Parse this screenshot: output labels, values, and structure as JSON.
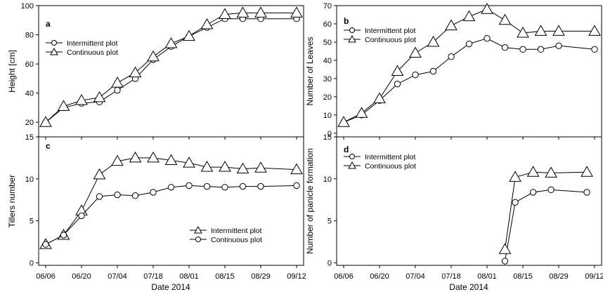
{
  "figure": {
    "x_axis_title": "Date 2014"
  },
  "chart_data": [
    {
      "id": "a",
      "type": "line",
      "panel_label": "a",
      "ylabel": "Height [cm]",
      "xlabel": "Date 2014",
      "ylim": [
        10,
        100
      ],
      "yticks": [
        20,
        40,
        60,
        80,
        100
      ],
      "xticks": [
        "06/06",
        "06/20",
        "07/04",
        "07/18",
        "08/01",
        "08/15",
        "08/29",
        "09/12"
      ],
      "x_unit": "days since 06/06",
      "legend_position": "top-left",
      "series": [
        {
          "name": "Intermittent plot",
          "marker": "circle",
          "x": [
            0,
            7,
            14,
            21,
            28,
            35,
            42,
            49,
            56,
            63,
            70,
            77,
            84,
            98
          ],
          "y": [
            20,
            30,
            33,
            34,
            42,
            50,
            63,
            72,
            79,
            85,
            91,
            91,
            91,
            91
          ]
        },
        {
          "name": "Continuous plot",
          "marker": "triangle",
          "x": [
            0,
            7,
            14,
            21,
            28,
            35,
            42,
            49,
            56,
            63,
            70,
            77,
            84,
            98
          ],
          "y": [
            20,
            31,
            35,
            37,
            47,
            54,
            65,
            74,
            79,
            87,
            94,
            95,
            95,
            95
          ]
        }
      ]
    },
    {
      "id": "b",
      "type": "line",
      "panel_label": "b",
      "ylabel": "Number of Leaves",
      "xlabel": "Date 2014",
      "ylim": [
        -2,
        70
      ],
      "yticks": [
        0,
        10,
        20,
        30,
        40,
        50,
        60,
        70
      ],
      "xticks": [
        "06/06",
        "06/20",
        "07/04",
        "07/18",
        "08/01",
        "08/15",
        "08/29",
        "09/12"
      ],
      "x_unit": "days since 06/06",
      "legend_position": "top-left",
      "series": [
        {
          "name": "Intermittent plot",
          "marker": "circle",
          "x": [
            0,
            7,
            14,
            21,
            28,
            35,
            42,
            49,
            56,
            63,
            70,
            77,
            84,
            98
          ],
          "y": [
            6,
            10,
            18,
            27,
            32,
            34,
            42,
            49,
            52,
            47,
            46,
            46,
            48,
            46
          ]
        },
        {
          "name": "Continuous plot",
          "marker": "triangle",
          "x": [
            0,
            7,
            14,
            21,
            28,
            35,
            42,
            49,
            56,
            63,
            70,
            77,
            84,
            98
          ],
          "y": [
            6,
            11,
            19,
            34,
            44,
            50,
            59,
            64,
            68,
            62,
            55,
            56,
            56,
            56
          ]
        }
      ]
    },
    {
      "id": "c",
      "type": "line",
      "panel_label": "c",
      "ylabel": "Tillers number",
      "xlabel": "Date 2014",
      "ylim": [
        -0.3,
        15
      ],
      "yticks": [
        0,
        5,
        10,
        15
      ],
      "xticks": [
        "06/06",
        "06/20",
        "07/04",
        "07/18",
        "08/01",
        "08/15",
        "08/29",
        "09/12"
      ],
      "x_unit": "days since 06/06",
      "legend_position": "bottom-right",
      "series": [
        {
          "name": "Intermittent plot",
          "marker": "triangle",
          "x": [
            0,
            7,
            14,
            21,
            28,
            35,
            42,
            49,
            56,
            63,
            70,
            77,
            84,
            98
          ],
          "y": [
            2.2,
            3.3,
            6.2,
            10.5,
            12.1,
            12.5,
            12.5,
            12.2,
            11.9,
            11.4,
            11.4,
            11.2,
            11.3,
            11.1
          ]
        },
        {
          "name": "Continuous plot",
          "marker": "circle",
          "x": [
            0,
            7,
            14,
            21,
            28,
            35,
            42,
            49,
            56,
            63,
            70,
            77,
            84,
            98
          ],
          "y": [
            2.2,
            3.3,
            5.6,
            7.9,
            8.1,
            8.0,
            8.4,
            9.0,
            9.2,
            9.1,
            9.0,
            9.1,
            9.1,
            9.2
          ]
        }
      ]
    },
    {
      "id": "d",
      "type": "line",
      "panel_label": "d",
      "ylabel": "Number of panicle formation",
      "xlabel": "Date 2014",
      "ylim": [
        -0.3,
        15
      ],
      "yticks": [
        0,
        5,
        10,
        15
      ],
      "xticks": [
        "06/06",
        "06/20",
        "07/04",
        "07/18",
        "08/01",
        "08/15",
        "08/29",
        "09/12"
      ],
      "x_unit": "days since 06/06",
      "legend_position": "top-left",
      "series": [
        {
          "name": "Intermittent plot",
          "marker": "circle",
          "x": [
            63,
            67,
            74,
            81,
            95
          ],
          "y": [
            0.2,
            7.2,
            8.4,
            8.7,
            8.4
          ]
        },
        {
          "name": "Continuous plot",
          "marker": "triangle",
          "x": [
            63,
            67,
            74,
            81,
            95
          ],
          "y": [
            1.6,
            10.2,
            10.8,
            10.7,
            10.8
          ]
        }
      ]
    }
  ]
}
